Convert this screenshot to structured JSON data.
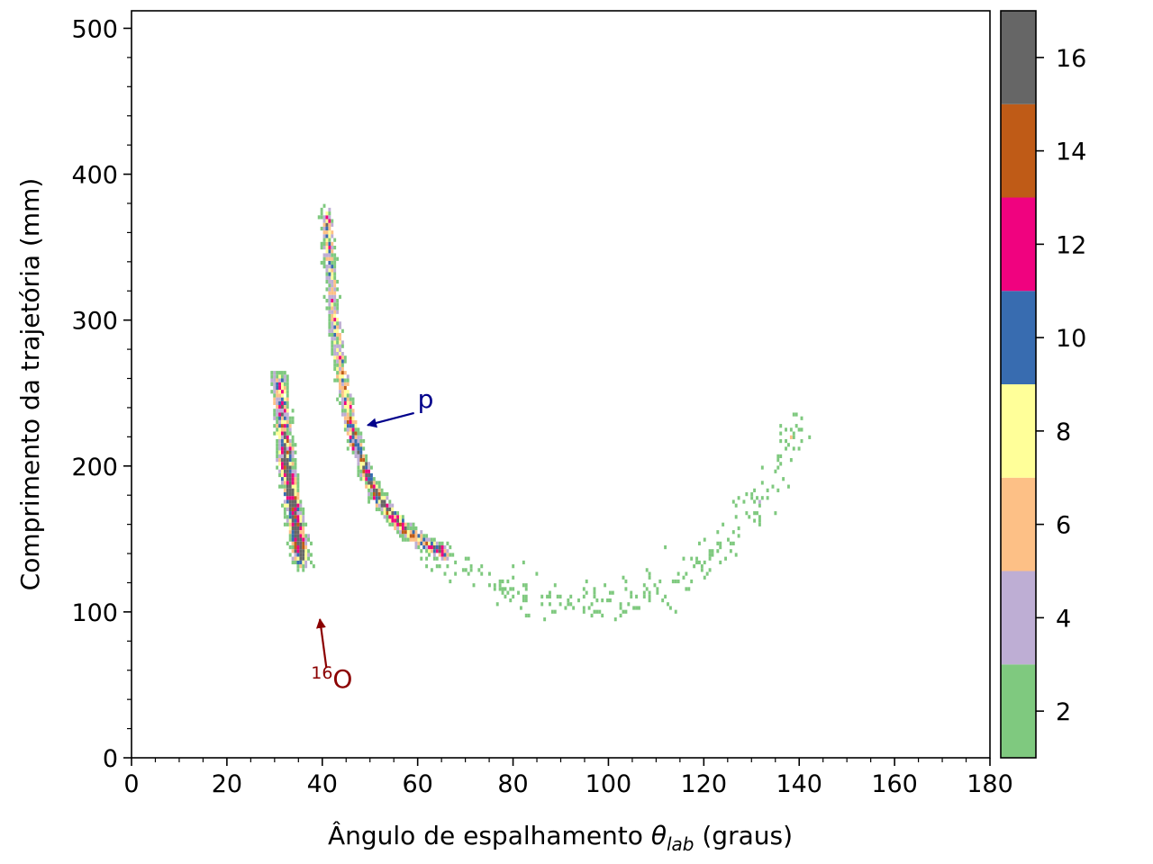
{
  "chart_data": {
    "type": "heatmap",
    "title": "",
    "xlabel": {
      "prefix": "Ângulo de espalhamento ",
      "symbol": "θ",
      "subscript": "lab",
      "suffix": " (graus)"
    },
    "ylabel": "Comprimento da trajetória (mm)",
    "xlim": [
      0,
      180
    ],
    "ylim": [
      0,
      512
    ],
    "x_ticks": [
      0,
      20,
      40,
      60,
      80,
      100,
      120,
      140,
      160,
      180
    ],
    "y_ticks": [
      0,
      100,
      200,
      300,
      400,
      500
    ],
    "grid": false,
    "colorbar": {
      "range": [
        1,
        17
      ],
      "ticks": [
        2,
        4,
        6,
        8,
        10,
        12,
        14,
        16
      ],
      "bins": [
        {
          "from": 1,
          "to": 3,
          "color": "#7fc97f"
        },
        {
          "from": 3,
          "to": 5,
          "color": "#beaed4"
        },
        {
          "from": 5,
          "to": 7,
          "color": "#fdc086"
        },
        {
          "from": 7,
          "to": 9,
          "color": "#ffff99"
        },
        {
          "from": 9,
          "to": 11,
          "color": "#386cb0"
        },
        {
          "from": 11,
          "to": 13,
          "color": "#f0027f"
        },
        {
          "from": 13,
          "to": 15,
          "color": "#bf5b17"
        },
        {
          "from": 15,
          "to": 17,
          "color": "#666666"
        }
      ]
    },
    "bands": [
      {
        "name": "p",
        "points": [
          [
            41.0,
            372
          ],
          [
            41.5,
            345
          ],
          [
            42.5,
            302
          ],
          [
            44.0,
            262
          ],
          [
            46.0,
            228
          ],
          [
            48.5,
            200
          ],
          [
            51.0,
            182
          ],
          [
            54.0,
            168
          ],
          [
            57.5,
            156
          ],
          [
            62.0,
            146
          ],
          [
            66.0,
            140
          ]
        ],
        "width_deg": 2.2,
        "peak_counts": 12
      },
      {
        "name": "16O",
        "points": [
          [
            31.0,
            262
          ],
          [
            31.5,
            235
          ],
          [
            32.3,
            210
          ],
          [
            33.0,
            192
          ],
          [
            33.8,
            175
          ],
          [
            34.5,
            160
          ],
          [
            35.2,
            146
          ],
          [
            36.0,
            134
          ]
        ],
        "width_deg": 3.0,
        "peak_counts": 10
      },
      {
        "name": "tail",
        "points": [
          [
            62,
            145
          ],
          [
            70,
            128
          ],
          [
            80,
            112
          ],
          [
            90,
            105
          ],
          [
            100,
            108
          ],
          [
            110,
            118
          ],
          [
            120,
            135
          ],
          [
            128,
            158
          ],
          [
            134,
            185
          ],
          [
            140,
            230
          ]
        ],
        "width_deg": 12.0,
        "peak_counts": 2,
        "sparse": true
      }
    ],
    "annotations": [
      {
        "text": "p",
        "sup": "",
        "color": "#00008b",
        "text_xy": [
          60,
          240
        ],
        "arrow_to": [
          49.5,
          228
        ]
      },
      {
        "text": "O",
        "sup": "16",
        "color": "#8b0000",
        "text_xy": [
          42,
          48
        ],
        "arrow_to": [
          39.5,
          95
        ]
      }
    ]
  }
}
